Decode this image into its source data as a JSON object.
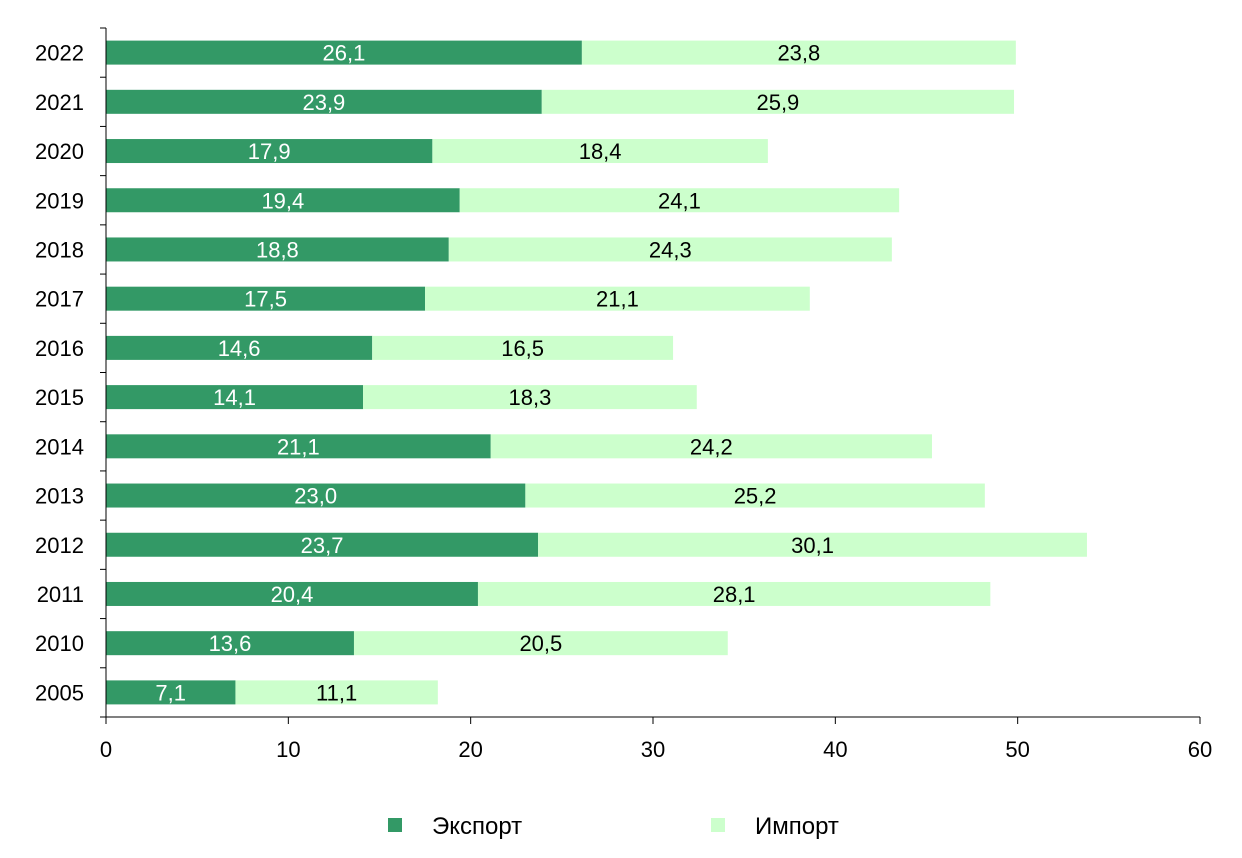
{
  "chart_data": {
    "type": "bar",
    "orientation": "horizontal",
    "stacked": true,
    "categories": [
      "2022",
      "2021",
      "2020",
      "2019",
      "2018",
      "2017",
      "2016",
      "2015",
      "2014",
      "2013",
      "2012",
      "2011",
      "2010",
      "2005"
    ],
    "series": [
      {
        "name": "Экспорт",
        "color": "#339966",
        "label_color": "#ffffff",
        "values": [
          26.1,
          23.9,
          17.9,
          19.4,
          18.8,
          17.5,
          14.6,
          14.1,
          21.1,
          23.0,
          23.7,
          20.4,
          13.6,
          7.1
        ],
        "labels": [
          "26,1",
          "23,9",
          "17,9",
          "19,4",
          "18,8",
          "17,5",
          "14,6",
          "14,1",
          "21,1",
          "23,0",
          "23,7",
          "20,4",
          "13,6",
          "7,1"
        ]
      },
      {
        "name": "Импорт",
        "color": "#ccffcc",
        "label_color": "#000000",
        "values": [
          23.8,
          25.9,
          18.4,
          24.1,
          24.3,
          21.1,
          16.5,
          18.3,
          24.2,
          25.2,
          30.1,
          28.1,
          20.5,
          11.1
        ],
        "labels": [
          "23,8",
          "25,9",
          "18,4",
          "24,1",
          "24,3",
          "21,1",
          "16,5",
          "18,3",
          "24,2",
          "25,2",
          "30,1",
          "28,1",
          "20,5",
          "11,1"
        ]
      }
    ],
    "xlim": [
      0,
      60
    ],
    "xticks": [
      "0",
      "10",
      "20",
      "30",
      "40",
      "50",
      "60"
    ],
    "grid": false,
    "legend_position": "bottom",
    "title": "",
    "xlabel": "",
    "ylabel": ""
  }
}
